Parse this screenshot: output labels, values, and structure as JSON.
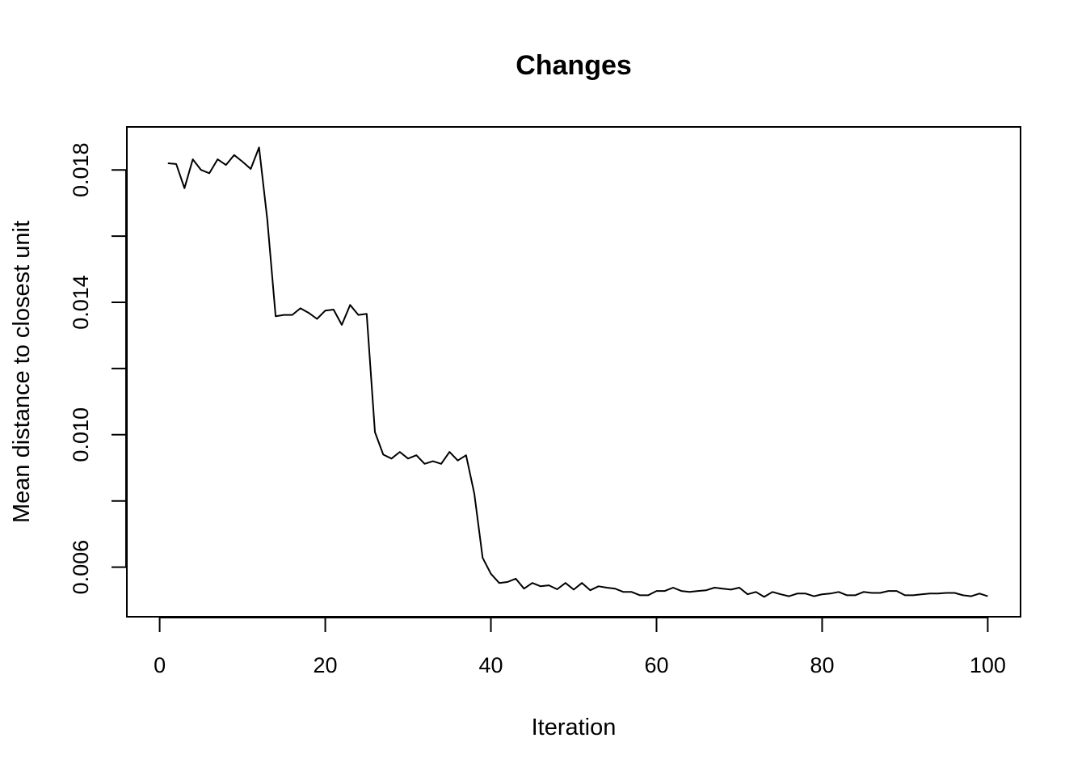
{
  "chart_data": {
    "type": "line",
    "title": "Changes",
    "xlabel": "Iteration",
    "ylabel": "Mean distance to closest unit",
    "xlim": [
      -3.96,
      103.96
    ],
    "ylim": [
      0.0045,
      0.0193
    ],
    "xticks": [
      0,
      20,
      40,
      60,
      80,
      100
    ],
    "yticks": [
      0.006,
      0.008,
      0.01,
      0.012,
      0.014,
      0.016,
      0.018
    ],
    "ytick_labels": [
      "0.006",
      "",
      "0.010",
      "",
      "0.014",
      "",
      "0.018"
    ],
    "grid": false,
    "series": [
      {
        "color": "#000000",
        "x": [
          1,
          2,
          3,
          4,
          5,
          6,
          7,
          8,
          9,
          10,
          11,
          12,
          13,
          14,
          15,
          16,
          17,
          18,
          19,
          20,
          21,
          22,
          23,
          24,
          25,
          26,
          27,
          28,
          29,
          30,
          31,
          32,
          33,
          34,
          35,
          36,
          37,
          38,
          39,
          40,
          41,
          42,
          43,
          44,
          45,
          46,
          47,
          48,
          49,
          50,
          51,
          52,
          53,
          54,
          55,
          56,
          57,
          58,
          59,
          60,
          61,
          62,
          63,
          64,
          65,
          66,
          67,
          68,
          69,
          70,
          71,
          72,
          73,
          74,
          75,
          76,
          77,
          78,
          79,
          80,
          81,
          82,
          83,
          84,
          85,
          86,
          87,
          88,
          89,
          90,
          91,
          92,
          93,
          94,
          95,
          96,
          97,
          98,
          99,
          100
        ],
        "values": [
          0.0182,
          0.01818,
          0.01745,
          0.01832,
          0.018,
          0.0179,
          0.01832,
          0.01815,
          0.01845,
          0.01825,
          0.01803,
          0.01868,
          0.0165,
          0.01358,
          0.01362,
          0.01362,
          0.01382,
          0.01368,
          0.0135,
          0.01375,
          0.01378,
          0.01332,
          0.01392,
          0.01362,
          0.01365,
          0.01008,
          0.0094,
          0.00928,
          0.00948,
          0.00928,
          0.00938,
          0.00912,
          0.0092,
          0.00912,
          0.00948,
          0.00922,
          0.00938,
          0.00822,
          0.00628,
          0.0058,
          0.00552,
          0.00555,
          0.00565,
          0.00535,
          0.00552,
          0.00542,
          0.00545,
          0.00533,
          0.00552,
          0.00532,
          0.00552,
          0.0053,
          0.00542,
          0.00538,
          0.00535,
          0.00525,
          0.00525,
          0.00515,
          0.00515,
          0.00528,
          0.00528,
          0.00538,
          0.00528,
          0.00525,
          0.00528,
          0.0053,
          0.00538,
          0.00535,
          0.00532,
          0.00538,
          0.00518,
          0.00525,
          0.0051,
          0.00525,
          0.00518,
          0.00512,
          0.0052,
          0.0052,
          0.00512,
          0.00518,
          0.0052,
          0.00525,
          0.00515,
          0.00515,
          0.00525,
          0.00522,
          0.00522,
          0.00528,
          0.00528,
          0.00515,
          0.00515,
          0.00518,
          0.0052,
          0.0052,
          0.00522,
          0.00522,
          0.00515,
          0.00512,
          0.0052,
          0.00512
        ]
      }
    ]
  }
}
